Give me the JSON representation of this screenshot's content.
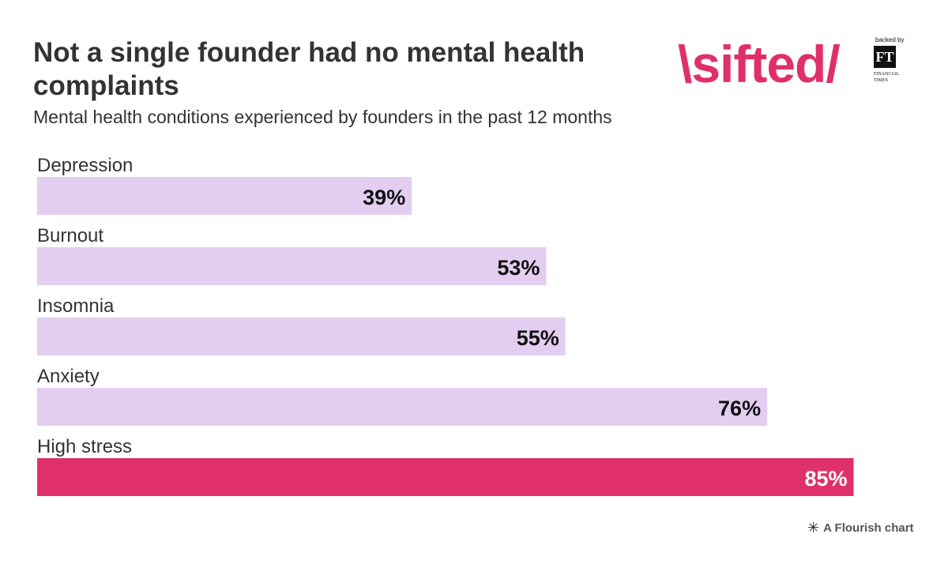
{
  "header": {
    "title": "Not a single founder had no mental health complaints",
    "subtitle": "Mental health conditions experienced by founders in the past 12 months"
  },
  "brand": {
    "logo_text": "\\sifted/",
    "backed_by": "backed by",
    "ft_mark": "FT",
    "ft_line1": "FINANCIAL",
    "ft_line2": "TIMES",
    "accent": "#e0306a"
  },
  "credit": {
    "icon": "flourish-asterisk-icon",
    "text": "A Flourish chart"
  },
  "chart_data": {
    "type": "bar",
    "orientation": "horizontal",
    "title": "Not a single founder had no mental health complaints",
    "subtitle": "Mental health conditions experienced by founders in the past 12 months",
    "categories": [
      "Depression",
      "Burnout",
      "Insomnia",
      "Anxiety",
      "High stress"
    ],
    "values": [
      39,
      53,
      55,
      76,
      85
    ],
    "labels": [
      "39%",
      "53%",
      "55%",
      "76%",
      "85%"
    ],
    "unit": "%",
    "xlim": [
      0,
      88
    ],
    "grid": false,
    "colors": {
      "default": "#e3cdf0",
      "highlight": "#e0306a",
      "label_dark": "#111111",
      "label_light": "#ffffff"
    },
    "highlight_index": 4
  }
}
